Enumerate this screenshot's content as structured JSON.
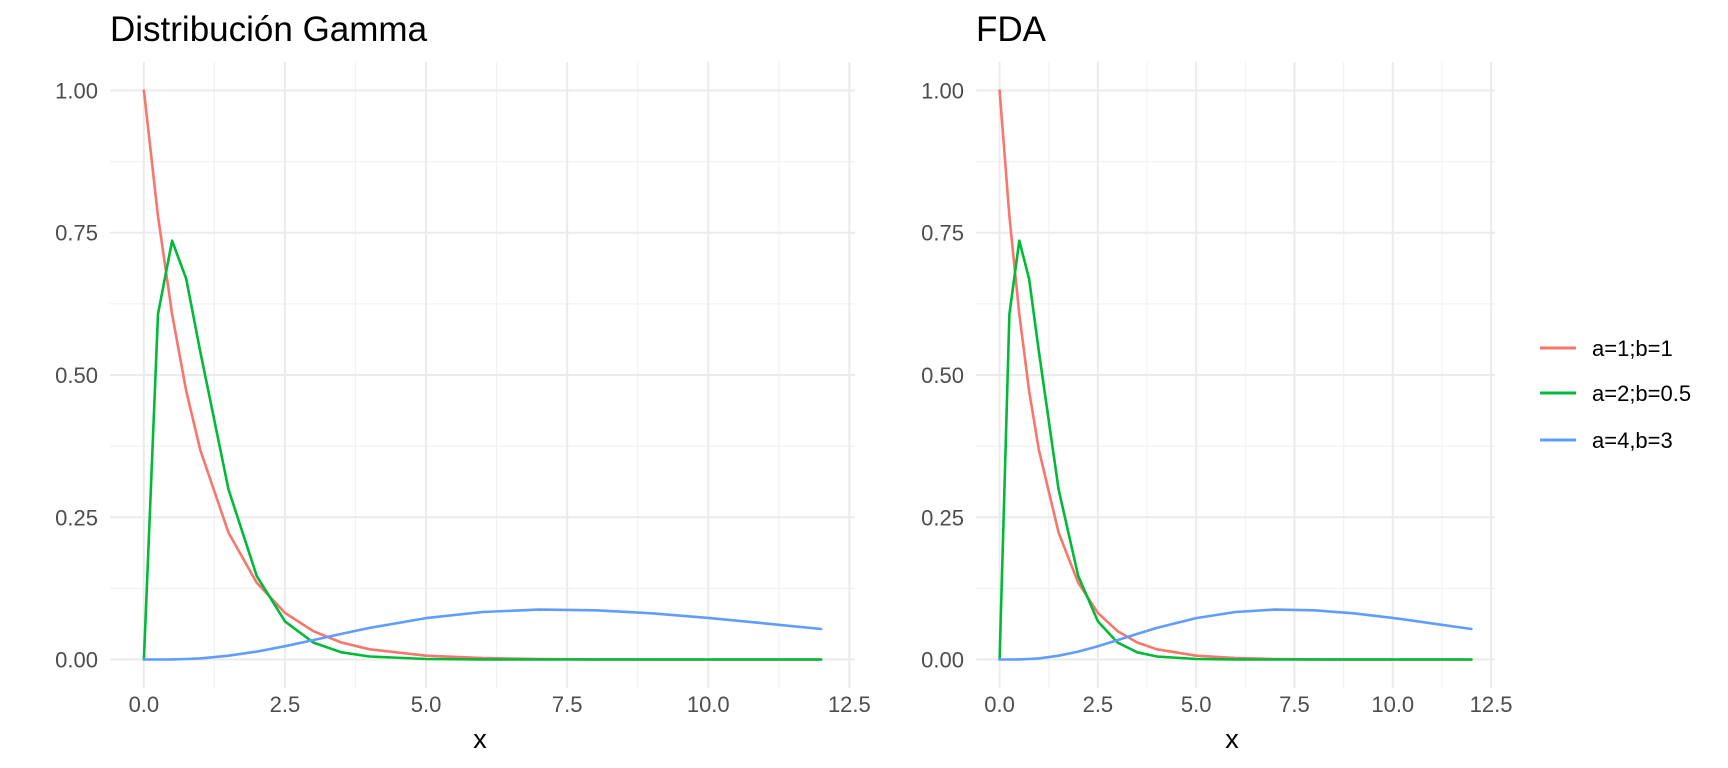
{
  "chart_data": [
    {
      "type": "line",
      "title": "Distribución Gamma",
      "xlabel": "x",
      "ylabel": "",
      "xlim": [
        -0.6,
        12.6
      ],
      "ylim": [
        -0.05,
        1.05
      ],
      "x_ticks": [
        "0.0",
        "2.5",
        "5.0",
        "7.5",
        "10.0",
        "12.5"
      ],
      "y_ticks": [
        "0.00",
        "0.25",
        "0.50",
        "0.75",
        "1.00"
      ],
      "grid": true,
      "x": [
        0,
        0.25,
        0.5,
        0.75,
        1,
        1.5,
        2,
        2.5,
        3,
        3.5,
        4,
        5,
        6,
        7,
        8,
        9,
        10,
        11,
        12
      ],
      "series": [
        {
          "name": "a=1;b=1",
          "color": "#F8766D",
          "values": [
            1.0,
            0.779,
            0.607,
            0.472,
            0.368,
            0.223,
            0.135,
            0.082,
            0.05,
            0.03,
            0.018,
            0.0067,
            0.0025,
            0.0009,
            0.0003,
            0.0001,
            0.0,
            0.0,
            0.0
          ]
        },
        {
          "name": "a=2;b=0.5",
          "color": "#00BA38",
          "values": [
            0.0,
            0.607,
            0.736,
            0.669,
            0.541,
            0.299,
            0.147,
            0.067,
            0.03,
            0.0128,
            0.0054,
            0.0009,
            0.0001,
            0.0,
            0.0,
            0.0,
            0.0,
            0.0,
            0.0
          ]
        },
        {
          "name": "a=4,b=3",
          "color": "#619CFF",
          "values": [
            0.0,
            0.0,
            0.0003,
            0.0009,
            0.0021,
            0.0067,
            0.0139,
            0.0234,
            0.0341,
            0.0451,
            0.0556,
            0.0728,
            0.0836,
            0.0878,
            0.0866,
            0.0813,
            0.0732,
            0.0635,
            0.0536
          ]
        }
      ]
    },
    {
      "type": "line",
      "title": "FDA",
      "xlabel": "x",
      "ylabel": "",
      "xlim": [
        -0.6,
        12.6
      ],
      "ylim": [
        -0.05,
        1.05
      ],
      "x_ticks": [
        "0.0",
        "2.5",
        "5.0",
        "7.5",
        "10.0",
        "12.5"
      ],
      "y_ticks": [
        "0.00",
        "0.25",
        "0.50",
        "0.75",
        "1.00"
      ],
      "grid": true,
      "x": [
        0,
        0.25,
        0.5,
        0.75,
        1,
        1.5,
        2,
        2.5,
        3,
        3.5,
        4,
        5,
        6,
        7,
        8,
        9,
        10,
        11,
        12
      ],
      "series": [
        {
          "name": "a=1;b=1",
          "color": "#F8766D",
          "values": [
            1.0,
            0.779,
            0.607,
            0.472,
            0.368,
            0.223,
            0.135,
            0.082,
            0.05,
            0.03,
            0.018,
            0.0067,
            0.0025,
            0.0009,
            0.0003,
            0.0001,
            0.0,
            0.0,
            0.0
          ]
        },
        {
          "name": "a=2;b=0.5",
          "color": "#00BA38",
          "values": [
            0.0,
            0.607,
            0.736,
            0.669,
            0.541,
            0.299,
            0.147,
            0.067,
            0.03,
            0.0128,
            0.0054,
            0.0009,
            0.0001,
            0.0,
            0.0,
            0.0,
            0.0,
            0.0,
            0.0
          ]
        },
        {
          "name": "a=4,b=3",
          "color": "#619CFF",
          "values": [
            0.0,
            0.0,
            0.0003,
            0.0009,
            0.0021,
            0.0067,
            0.0139,
            0.0234,
            0.0341,
            0.0451,
            0.0556,
            0.0728,
            0.0836,
            0.0878,
            0.0866,
            0.0813,
            0.0732,
            0.0635,
            0.0536
          ]
        }
      ]
    }
  ],
  "legend": {
    "placement": "right",
    "items": [
      {
        "label": "a=1;b=1",
        "color": "#F8766D"
      },
      {
        "label": "a=2;b=0.5",
        "color": "#00BA38"
      },
      {
        "label": "a=4,b=3",
        "color": "#619CFF"
      }
    ]
  }
}
